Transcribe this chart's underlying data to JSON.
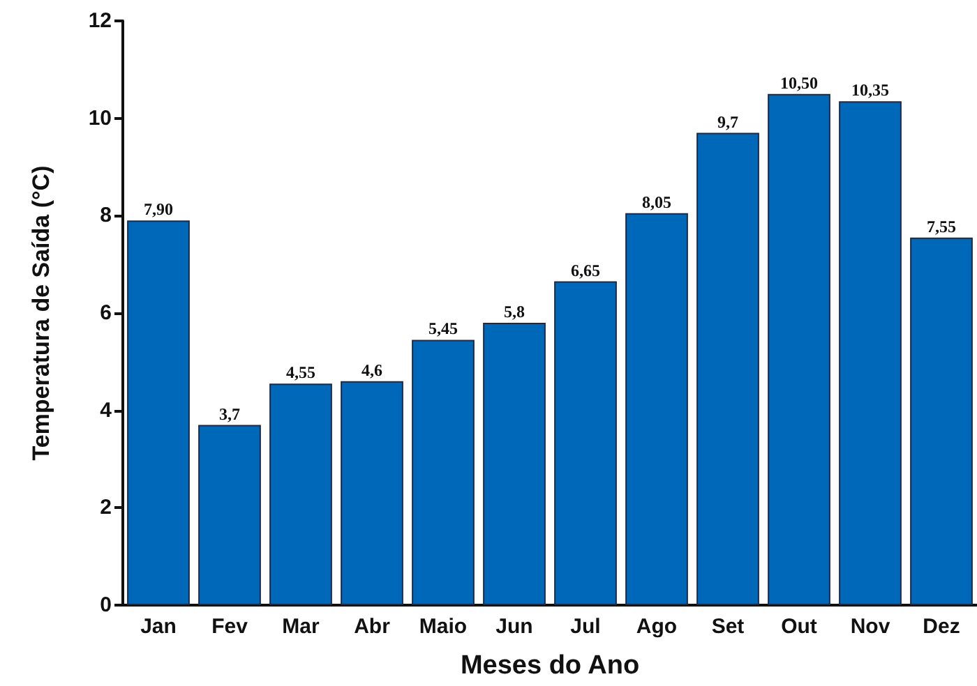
{
  "chart_data": {
    "type": "bar",
    "xlabel": "Meses do Ano",
    "ylabel": "Temperatura de Saída (°C)",
    "categories": [
      "Jan",
      "Fev",
      "Mar",
      "Abr",
      "Maio",
      "Jun",
      "Jul",
      "Ago",
      "Set",
      "Out",
      "Nov",
      "Dez"
    ],
    "values": [
      7.9,
      3.7,
      4.55,
      4.6,
      5.45,
      5.8,
      6.65,
      8.05,
      9.7,
      10.5,
      10.35,
      7.55
    ],
    "value_labels": [
      "7,90",
      "3,7",
      "4,55",
      "4,6",
      "5,45",
      "5,8",
      "6,65",
      "8,05",
      "9,7",
      "10,50",
      "10,35",
      "7,55"
    ],
    "color": "#0068b8",
    "ylim": [
      0,
      12
    ],
    "yticks": [
      0,
      2,
      4,
      6,
      8,
      10,
      12
    ],
    "grid": false
  }
}
